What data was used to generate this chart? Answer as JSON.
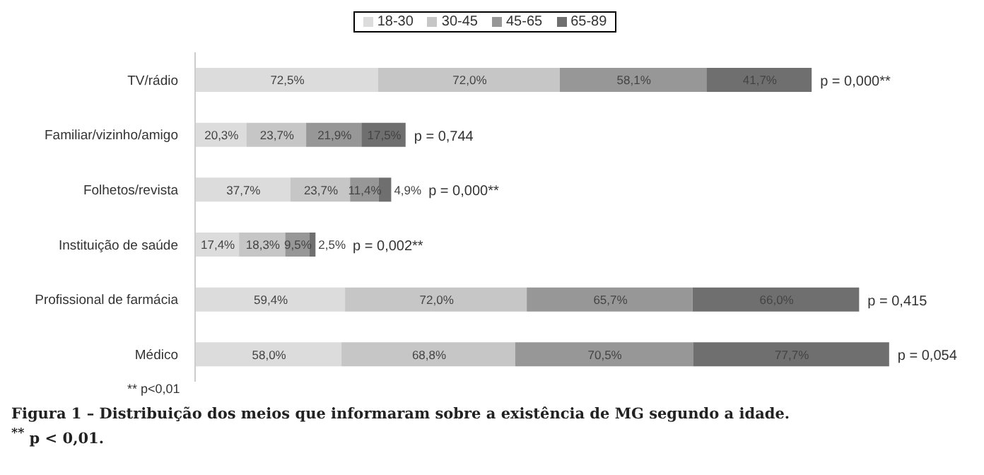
{
  "chart_data": {
    "type": "bar",
    "orientation": "horizontal",
    "stacked": true,
    "legend": "top",
    "categories": [
      "TV/rádio",
      "Familiar/vizinho/amigo",
      "Folhetos/revista",
      "Instituição de saúde",
      "Profissional de farmácia",
      "Médico"
    ],
    "series": [
      {
        "name": "18-30",
        "color": "#dcdcdc",
        "values": [
          72.5,
          20.3,
          37.7,
          17.4,
          59.4,
          58.0
        ],
        "value_labels": [
          "72,5%",
          "20,3%",
          "37,7%",
          "17,4%",
          "59,4%",
          "58,0%"
        ]
      },
      {
        "name": "30-45",
        "color": "#c6c6c6",
        "values": [
          72.0,
          23.7,
          23.7,
          18.3,
          72.0,
          68.8
        ],
        "value_labels": [
          "72,0%",
          "23,7%",
          "23,7%",
          "18,3%",
          "72,0%",
          "68,8%"
        ]
      },
      {
        "name": "45-65",
        "color": "#979797",
        "values": [
          58.1,
          21.9,
          11.4,
          9.5,
          65.7,
          70.5
        ],
        "value_labels": [
          "58,1%",
          "21,9%",
          "11,4%",
          "9,5%",
          "65,7%",
          "70,5%"
        ]
      },
      {
        "name": "65-89",
        "color": "#6f6f6f",
        "values": [
          41.7,
          17.5,
          4.9,
          2.5,
          66.0,
          77.7
        ],
        "value_labels": [
          "41,7%",
          "17,5%",
          "4,9%",
          "2,5%",
          "66,0%",
          "77,7%"
        ]
      }
    ],
    "annotations": [
      "p = 0,000**",
      "p = 0,744",
      "p = 0,000**",
      "p = 0,002**",
      "p = 0,415",
      "p = 0,054",
      "** p<0,01",
      "Figura 1 – Distribuição dos meios que informaram sobre a existência de MG segundo a idade.",
      "$^{**}$ p < 0,01."
    ]
  }
}
